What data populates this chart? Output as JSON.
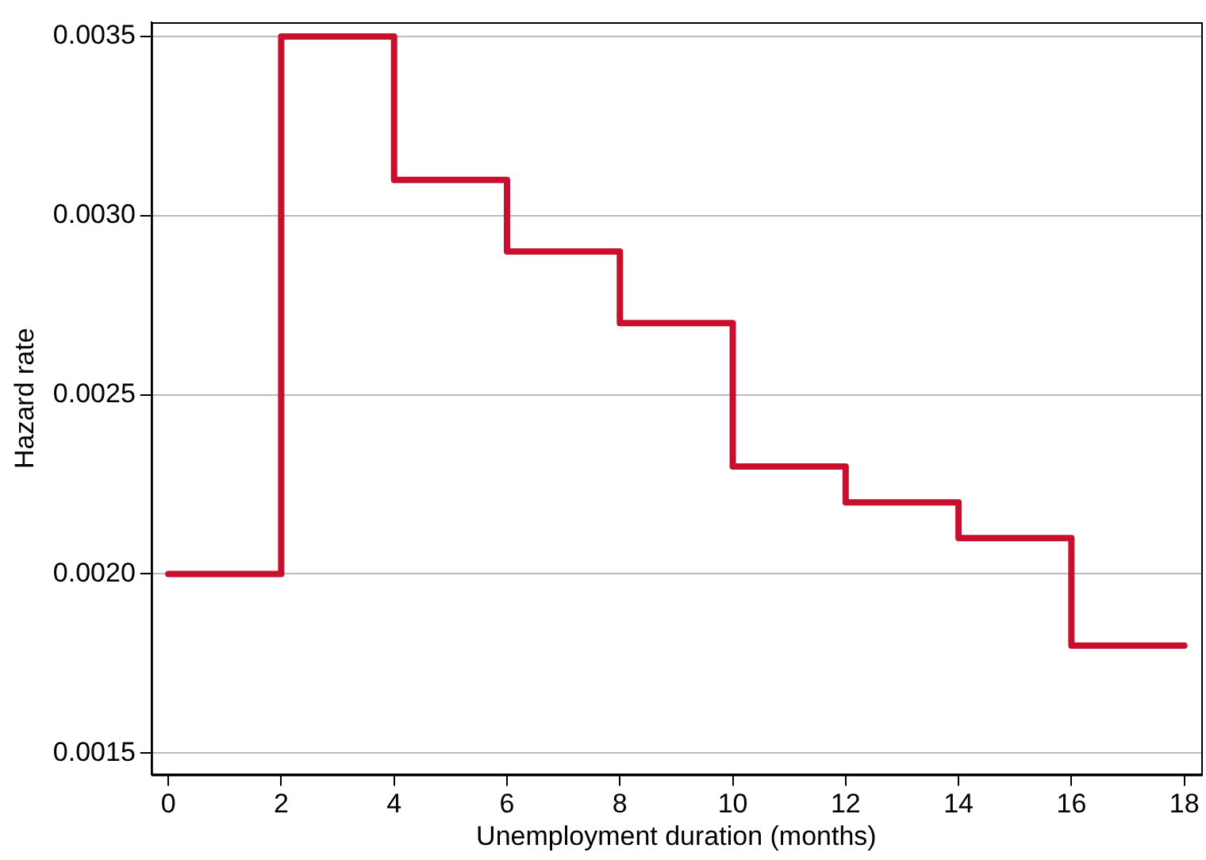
{
  "chart_data": {
    "type": "step",
    "xlabel": "Unemployment duration (months)",
    "ylabel": "Hazard rate",
    "x": [
      0,
      2,
      4,
      6,
      8,
      10,
      12,
      14,
      16,
      18
    ],
    "series": [
      {
        "color": "#c8102e",
        "values": [
          0.002,
          0.0035,
          0.0031,
          0.0029,
          0.0027,
          0.0023,
          0.0022,
          0.0021,
          0.0018,
          0.0018
        ]
      }
    ],
    "xlim": [
      -0.3,
      18.3
    ],
    "xticks": [
      0,
      2,
      4,
      6,
      8,
      10,
      12,
      14,
      16,
      18
    ],
    "ylim": [
      0.00144,
      0.00354
    ],
    "yticks": [
      {
        "value": 0.0015,
        "label": "0.0015"
      },
      {
        "value": 0.002,
        "label": "0.0020"
      },
      {
        "value": 0.0025,
        "label": "0.0025"
      },
      {
        "value": 0.003,
        "label": "0.0030"
      },
      {
        "value": 0.0035,
        "label": "0.0035"
      }
    ],
    "grid": "y",
    "legend": false,
    "line_style": "solid",
    "marker": "none"
  }
}
